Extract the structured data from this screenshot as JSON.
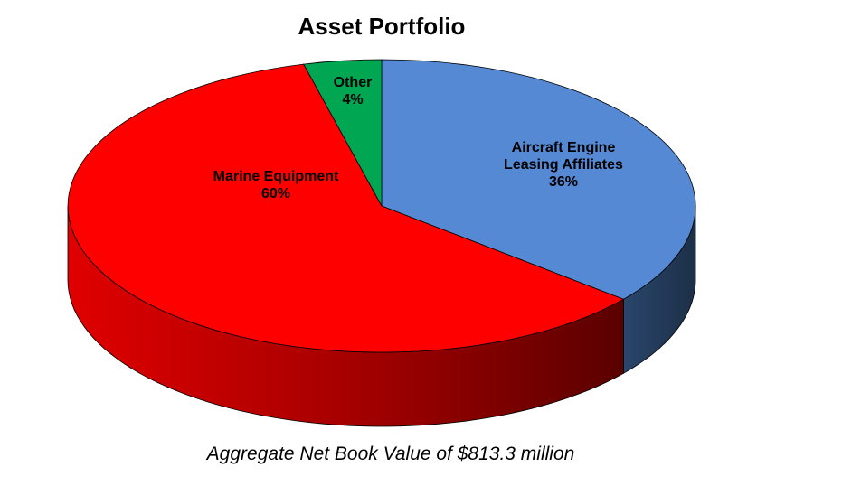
{
  "chart_data": {
    "type": "pie",
    "title": "Asset Portfolio",
    "caption": "Aggregate Net Book Value of $813.3 million",
    "slices": [
      {
        "label_lines": [
          "Aircraft Engine",
          "Leasing Affiliates",
          "36%"
        ],
        "name": "Aircraft Engine Leasing Affiliates",
        "value": 36,
        "color": "#5589D4",
        "side_color": "#233A5A"
      },
      {
        "label_lines": [
          "Marine Equipment",
          "60%"
        ],
        "name": "Marine Equipment",
        "value": 60,
        "color": "#FF0000",
        "side_color": "#C00000"
      },
      {
        "label_lines": [
          "Other",
          "4%"
        ],
        "name": "Other",
        "value": 4,
        "color": "#00A651",
        "side_color": "#006B33"
      }
    ],
    "style": "3d-tilted"
  }
}
